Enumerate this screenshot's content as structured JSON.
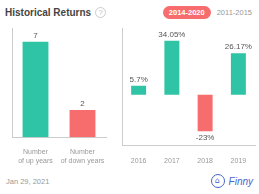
{
  "chart_data": [
    {
      "type": "bar",
      "title": "Historical Returns",
      "annotations": [
        "?",
        "2014-2020",
        "2011-2015",
        "Jan 29, 2021",
        "⌂",
        "Finny"
      ],
      "categories": [
        "Number\nof up years",
        "Number\nof down years"
      ],
      "values": [
        7,
        2
      ],
      "colors": [
        "#2ec4a5",
        "#f76c6c"
      ],
      "ylim": [
        0,
        8
      ],
      "data_labels": true,
      "tick_labels": "x",
      "grid": false
    },
    {
      "type": "bar",
      "categories": [
        "2016",
        "2017",
        "2018",
        "2019"
      ],
      "values": [
        5.7,
        34.05,
        -23.0,
        26.17
      ],
      "value_labels": [
        "5.7%",
        "34.05%",
        "-23%",
        "26.17%"
      ],
      "colors": [
        "#2ec4a5",
        "#2ec4a5",
        "#f76c6c",
        "#2ec4a5"
      ],
      "ylim": [
        -32,
        42
      ],
      "data_labels": true,
      "tick_labels": "x",
      "grid": false
    }
  ]
}
